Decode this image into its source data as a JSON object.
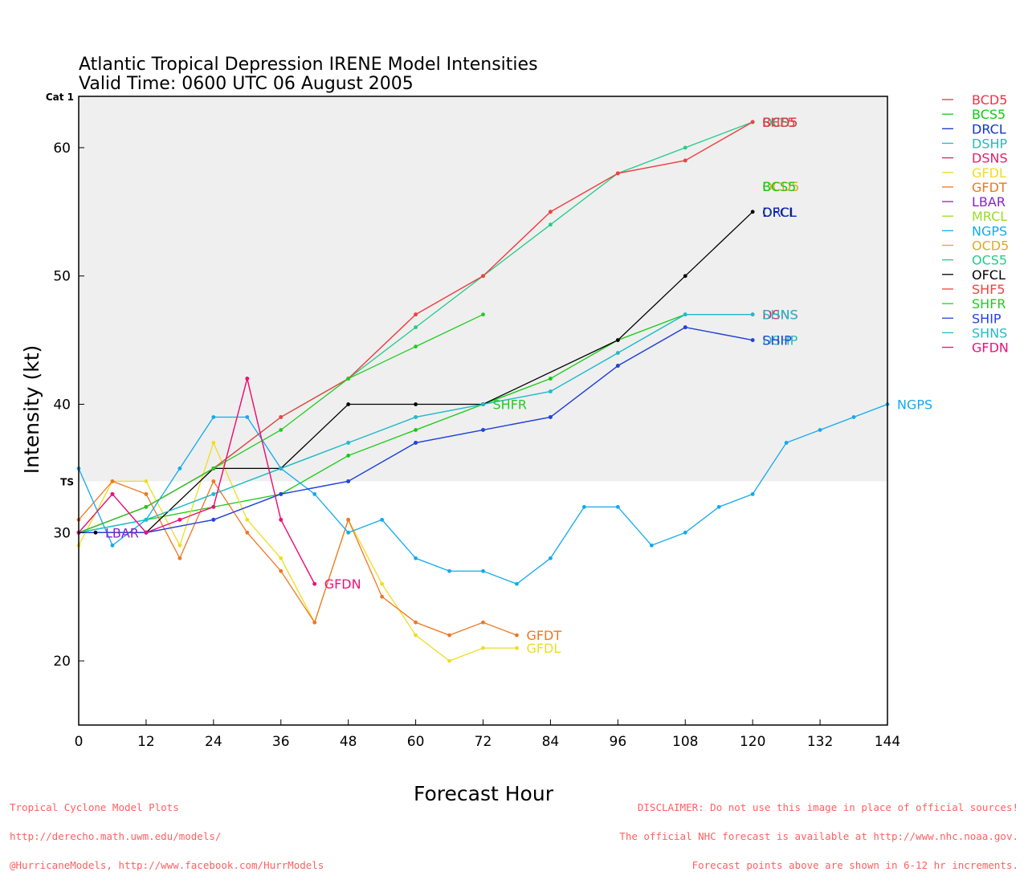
{
  "chart_data": {
    "type": "line",
    "title": "Atlantic Tropical Depression IRENE Model Intensities",
    "subtitle": "Valid Time: 0600 UTC 06 August 2005",
    "xlabel": "Forecast Hour",
    "ylabel": "Intensity (kt)",
    "xlim": [
      0,
      144
    ],
    "ylim": [
      15,
      64
    ],
    "xticks": [
      0,
      12,
      24,
      36,
      48,
      60,
      72,
      84,
      96,
      108,
      120,
      132,
      144
    ],
    "yticks": [
      20,
      30,
      40,
      50,
      60
    ],
    "bands": [
      {
        "label": "TS",
        "from": 34,
        "to": 64,
        "color": "#efefef"
      },
      {
        "label": "Cat 1",
        "from": 64,
        "to": 67,
        "color": "#d9d9d9"
      }
    ],
    "legend_position": "right",
    "series": [
      {
        "name": "BCD5",
        "color": "#ee3344",
        "x": [
          0,
          12,
          24,
          36,
          48,
          60,
          72,
          84,
          96,
          108,
          120
        ],
        "y": [
          30,
          32,
          35,
          39,
          42,
          47,
          50,
          55,
          58,
          59,
          62
        ],
        "end_label": false
      },
      {
        "name": "BCS5",
        "color": "#11cc11",
        "x": [
          0,
          12,
          24,
          36,
          48,
          60,
          72,
          84,
          96,
          108,
          120
        ],
        "y": [
          30,
          31,
          32,
          33,
          36,
          38,
          40,
          42,
          45,
          47,
          47
        ],
        "end_label": false
      },
      {
        "name": "DRCL",
        "color": "#1133cc",
        "x": [
          0,
          12,
          24,
          36,
          48,
          60,
          72,
          84,
          96,
          108,
          120
        ],
        "y": [
          30,
          30,
          31,
          33,
          34,
          37,
          38,
          39,
          43,
          46,
          45
        ],
        "end_label": false
      },
      {
        "name": "DSHP",
        "color": "#22bbbb",
        "x": [
          0,
          12,
          24,
          36,
          48,
          60,
          72,
          84,
          96,
          108,
          120
        ],
        "y": [
          30,
          31,
          33,
          35,
          37,
          39,
          40,
          41,
          44,
          47,
          47
        ],
        "end_label": false
      },
      {
        "name": "DSNS",
        "color": "#dd2266",
        "x": [
          0,
          6,
          12,
          18,
          24,
          30,
          36,
          42
        ],
        "y": [
          30,
          33,
          30,
          31,
          32,
          42,
          31,
          26
        ],
        "end_label": false
      },
      {
        "name": "GFDL",
        "color": "#eedd22",
        "x": [
          0,
          6,
          12,
          18,
          24,
          30,
          36,
          42,
          48,
          54,
          60,
          66,
          72,
          78
        ],
        "y": [
          29,
          34,
          34,
          29,
          37,
          31,
          28,
          23,
          31,
          26,
          22,
          20,
          21,
          21
        ],
        "end_label": true
      },
      {
        "name": "GFDT",
        "color": "#ee7722",
        "x": [
          0,
          6,
          12,
          18,
          24,
          30,
          36,
          42,
          48,
          54,
          60,
          66,
          72,
          78
        ],
        "y": [
          31,
          34,
          33,
          28,
          34,
          30,
          27,
          23,
          31,
          25,
          23,
          22,
          23,
          22
        ],
        "end_label": true
      },
      {
        "name": "LBAR",
        "color": "#8822cc",
        "x": [
          0,
          12
        ],
        "y": [
          30,
          30
        ],
        "end_label": false
      },
      {
        "name": "MRCL",
        "color": "#99dd22",
        "x": [
          0,
          12
        ],
        "y": [
          30,
          30
        ],
        "end_label": false
      },
      {
        "name": "NGPS",
        "color": "#11aaee",
        "x": [
          0,
          6,
          12,
          18,
          24,
          30,
          36,
          42,
          48,
          54,
          60,
          66,
          72,
          78,
          84,
          90,
          96,
          102,
          108,
          114,
          120,
          126,
          132,
          138,
          144
        ],
        "y": [
          35,
          29,
          31,
          35,
          39,
          39,
          35,
          33,
          30,
          31,
          28,
          27,
          27,
          26,
          28,
          32,
          32,
          29,
          30,
          32,
          33,
          37,
          38,
          39,
          40
        ],
        "end_label": true
      },
      {
        "name": "OCD5",
        "color": "#ddaa22",
        "x": [
          0,
          12
        ],
        "y": [
          30,
          30
        ],
        "end_label": false
      },
      {
        "name": "OCS5",
        "color": "#22cc88",
        "x": [
          0,
          12,
          24,
          36,
          48,
          60,
          72,
          84,
          96,
          108,
          120
        ],
        "y": [
          30,
          32,
          35,
          39,
          42,
          46,
          50,
          54,
          58,
          60,
          62
        ],
        "end_label": false
      },
      {
        "name": "OFCL",
        "color": "#000000",
        "x": [
          0,
          3,
          12,
          24,
          36,
          48,
          60,
          72,
          96,
          108,
          120
        ],
        "y": [
          30,
          30,
          30,
          35,
          35,
          40,
          40,
          40,
          45,
          50,
          55
        ],
        "end_label": true
      },
      {
        "name": "SHF5",
        "color": "#ee4444",
        "x": [
          0,
          12,
          24,
          36,
          48,
          60,
          72,
          84,
          96,
          108,
          120
        ],
        "y": [
          30,
          32,
          35,
          39,
          42,
          47,
          50,
          55,
          58,
          59,
          62
        ],
        "end_label": false
      },
      {
        "name": "SHFR",
        "color": "#22cc22",
        "x": [
          0,
          12,
          24,
          36,
          48,
          60,
          72
        ],
        "y": [
          30,
          32,
          35,
          38,
          42,
          44.5,
          47
        ],
        "end_label": false
      },
      {
        "name": "SHIP",
        "color": "#2244dd",
        "x": [
          0,
          12,
          24,
          36,
          48,
          60,
          72,
          84,
          96,
          108,
          120
        ],
        "y": [
          30,
          30,
          31,
          33,
          34,
          37,
          38,
          39,
          43,
          46,
          45
        ],
        "end_label": false
      },
      {
        "name": "SHNS",
        "color": "#22bbcc",
        "x": [
          0,
          12,
          24,
          36,
          48,
          60,
          72,
          84,
          96,
          108,
          120
        ],
        "y": [
          30,
          31,
          33,
          35,
          37,
          39,
          40,
          41,
          44,
          47,
          47
        ],
        "end_label": false
      },
      {
        "name": "GFDN",
        "color": "#ee1177",
        "x": [
          0,
          6,
          12,
          18,
          24,
          30,
          36,
          42
        ],
        "y": [
          30,
          33,
          30,
          31,
          32,
          42,
          31,
          26
        ],
        "end_label": true
      }
    ],
    "end_labels": [
      {
        "text": "OCS5",
        "x": 120,
        "y": 62,
        "color": "#22cc88"
      },
      {
        "text": "SHF5",
        "x": 120,
        "y": 62,
        "color": "#ee4444"
      },
      {
        "text": "BCD5",
        "x": 120,
        "y": 62,
        "color": "#ee3344"
      },
      {
        "text": "OCD5",
        "x": 120,
        "y": 57,
        "color": "#ddaa22"
      },
      {
        "text": "BCS5",
        "x": 120,
        "y": 57,
        "color": "#11cc11"
      },
      {
        "text": "OFCL",
        "x": 120,
        "y": 55,
        "color": "#000000"
      },
      {
        "text": "DRCL",
        "x": 120,
        "y": 55,
        "color": "#1133cc"
      },
      {
        "text": "DSNS",
        "x": 120,
        "y": 47,
        "color": "#dd2266"
      },
      {
        "text": "SHNS",
        "x": 120,
        "y": 47,
        "color": "#22bbcc"
      },
      {
        "text": "DSHP",
        "x": 120,
        "y": 45,
        "color": "#22bbbb"
      },
      {
        "text": "SHIP",
        "x": 120,
        "y": 45,
        "color": "#2244dd"
      },
      {
        "text": "SHFR",
        "x": 72,
        "y": 40,
        "color": "#22cc22"
      },
      {
        "text": "NGPS",
        "x": 144,
        "y": 40,
        "color": "#11aaee"
      },
      {
        "text": "LBAR",
        "x": 3,
        "y": 30,
        "color": "#8822cc"
      },
      {
        "text": "GFDN",
        "x": 42,
        "y": 26,
        "color": "#ee1177"
      },
      {
        "text": "GFDT",
        "x": 78,
        "y": 22,
        "color": "#ee7722"
      },
      {
        "text": "GFDL",
        "x": 78,
        "y": 21,
        "color": "#eedd22"
      }
    ]
  },
  "footer": {
    "left_lines": [
      "Tropical Cyclone Model Plots",
      "http://derecho.math.uwm.edu/models/",
      "@HurricaneModels, http://www.facebook.com/HurrModels"
    ],
    "right_lines": [
      "DISCLAIMER: Do not use this image in place of official sources!",
      "The official NHC forecast is available at http://www.nhc.noaa.gov.",
      "Forecast points above are shown in 6-12 hr increments."
    ]
  }
}
